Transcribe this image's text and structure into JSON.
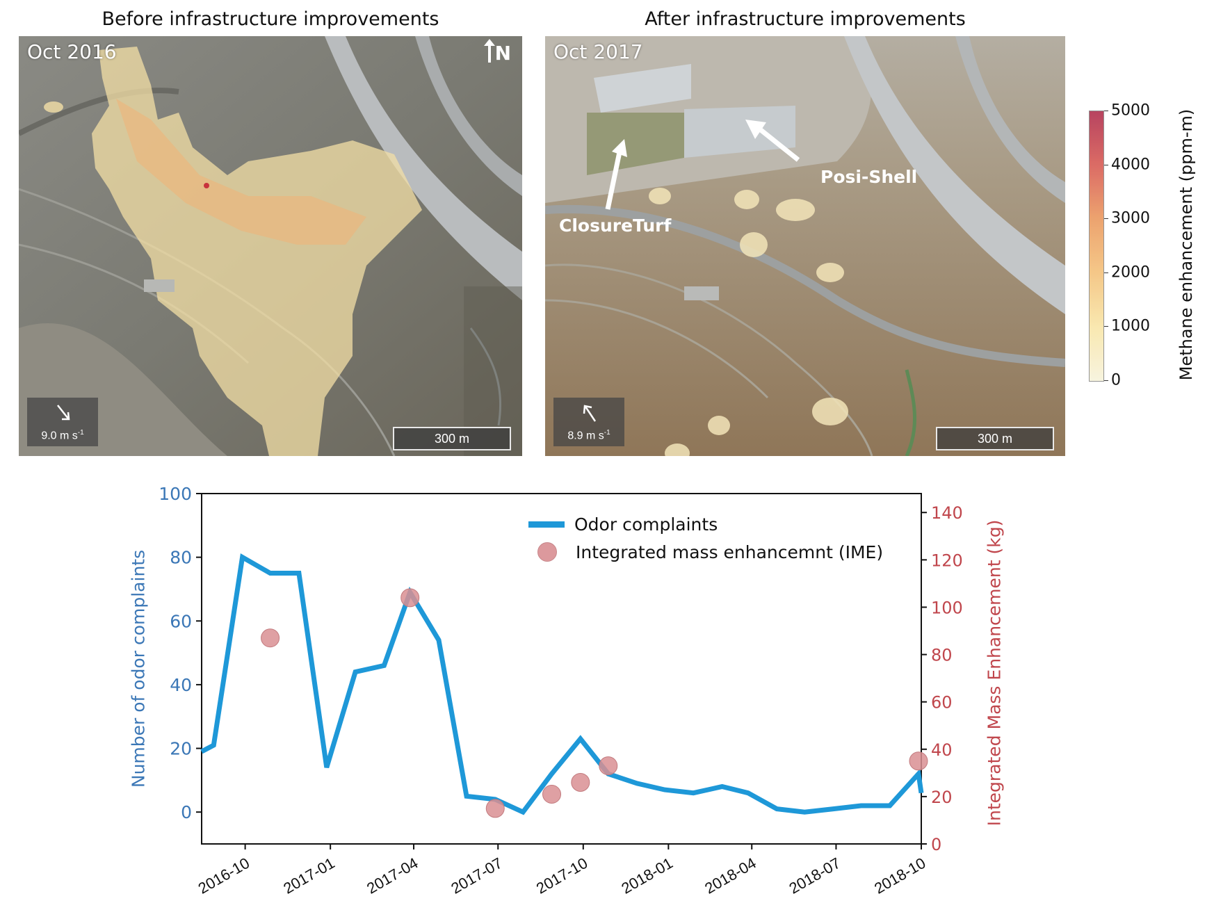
{
  "panels": {
    "left": {
      "title": "Before infrastructure improvements",
      "date_label": "Oct 2016",
      "north_label": "N",
      "wind_speed": "9.0 m s",
      "wind_unit_exp": "-1",
      "wind_direction": "southeast",
      "scale_bar": "300 m"
    },
    "right": {
      "title": "After infrastructure improvements",
      "date_label": "Oct 2017",
      "wind_speed": "8.9 m s",
      "wind_unit_exp": "-1",
      "wind_direction": "northwest",
      "scale_bar": "300 m",
      "annotations": [
        "ClosureTurf",
        "Posi-Shell"
      ]
    }
  },
  "colorbar": {
    "title": "Methane enhancement (ppm-m)",
    "ticks": [
      "0",
      "1000",
      "2000",
      "3000",
      "4000",
      "5000"
    ],
    "min": 0,
    "max": 5000,
    "colors": [
      "#f7f3dc",
      "#f9e6a8",
      "#f4c27c",
      "#eb9a60",
      "#d85c55",
      "#b0304f"
    ]
  },
  "chart_data": {
    "type": "line",
    "title": "",
    "xlabel": "",
    "ylabel": "Number of odor complaints",
    "ylabel_right": "Integrated Mass Enhancement (kg)",
    "ylim": [
      -10,
      100
    ],
    "ylim_right": [
      0,
      148
    ],
    "yticks": [
      0,
      20,
      40,
      60,
      80,
      100
    ],
    "yticks_right": [
      0,
      20,
      40,
      60,
      80,
      100,
      120,
      140
    ],
    "xticks": [
      "2016-10",
      "2017-01",
      "2017-04",
      "2017-07",
      "2017-10",
      "2018-01",
      "2018-04",
      "2018-07",
      "2018-10"
    ],
    "xrange": [
      "2016-08-15",
      "2018-10-01"
    ],
    "grid": false,
    "legend_position": "upper right",
    "colors": {
      "left_axis": "#3b77b6",
      "right_axis": "#c0464c",
      "line": "#1e98d8",
      "dots": "#d98f93"
    },
    "series": [
      {
        "name": "Odor complaints",
        "type": "line",
        "axis": "left",
        "x": [
          "2016-08-15",
          "2016-08-28",
          "2016-09-28",
          "2016-10-28",
          "2016-11-28",
          "2016-12-28",
          "2017-01-28",
          "2017-02-28",
          "2017-03-28",
          "2017-04-28",
          "2017-05-28",
          "2017-06-28",
          "2017-07-28",
          "2017-08-28",
          "2017-09-28",
          "2017-10-28",
          "2017-11-28",
          "2017-12-28",
          "2018-01-28",
          "2018-02-28",
          "2018-03-28",
          "2018-04-28",
          "2018-05-28",
          "2018-06-28",
          "2018-07-28",
          "2018-08-28",
          "2018-09-28",
          "2018-10-01"
        ],
        "values": [
          19,
          21,
          80,
          75,
          75,
          14,
          44,
          46,
          69,
          54,
          5,
          4,
          0,
          12,
          23,
          12,
          9,
          7,
          6,
          8,
          6,
          1,
          0,
          1,
          2,
          2,
          12,
          6
        ]
      },
      {
        "name": "Integrated mass enhancemnt (IME)",
        "type": "scatter",
        "axis": "right",
        "x": [
          "2016-10-28",
          "2017-03-28",
          "2017-06-28",
          "2017-08-28",
          "2017-09-28",
          "2017-10-28",
          "2018-09-28"
        ],
        "values": [
          87,
          104,
          15,
          21,
          26,
          33,
          35
        ]
      }
    ]
  }
}
